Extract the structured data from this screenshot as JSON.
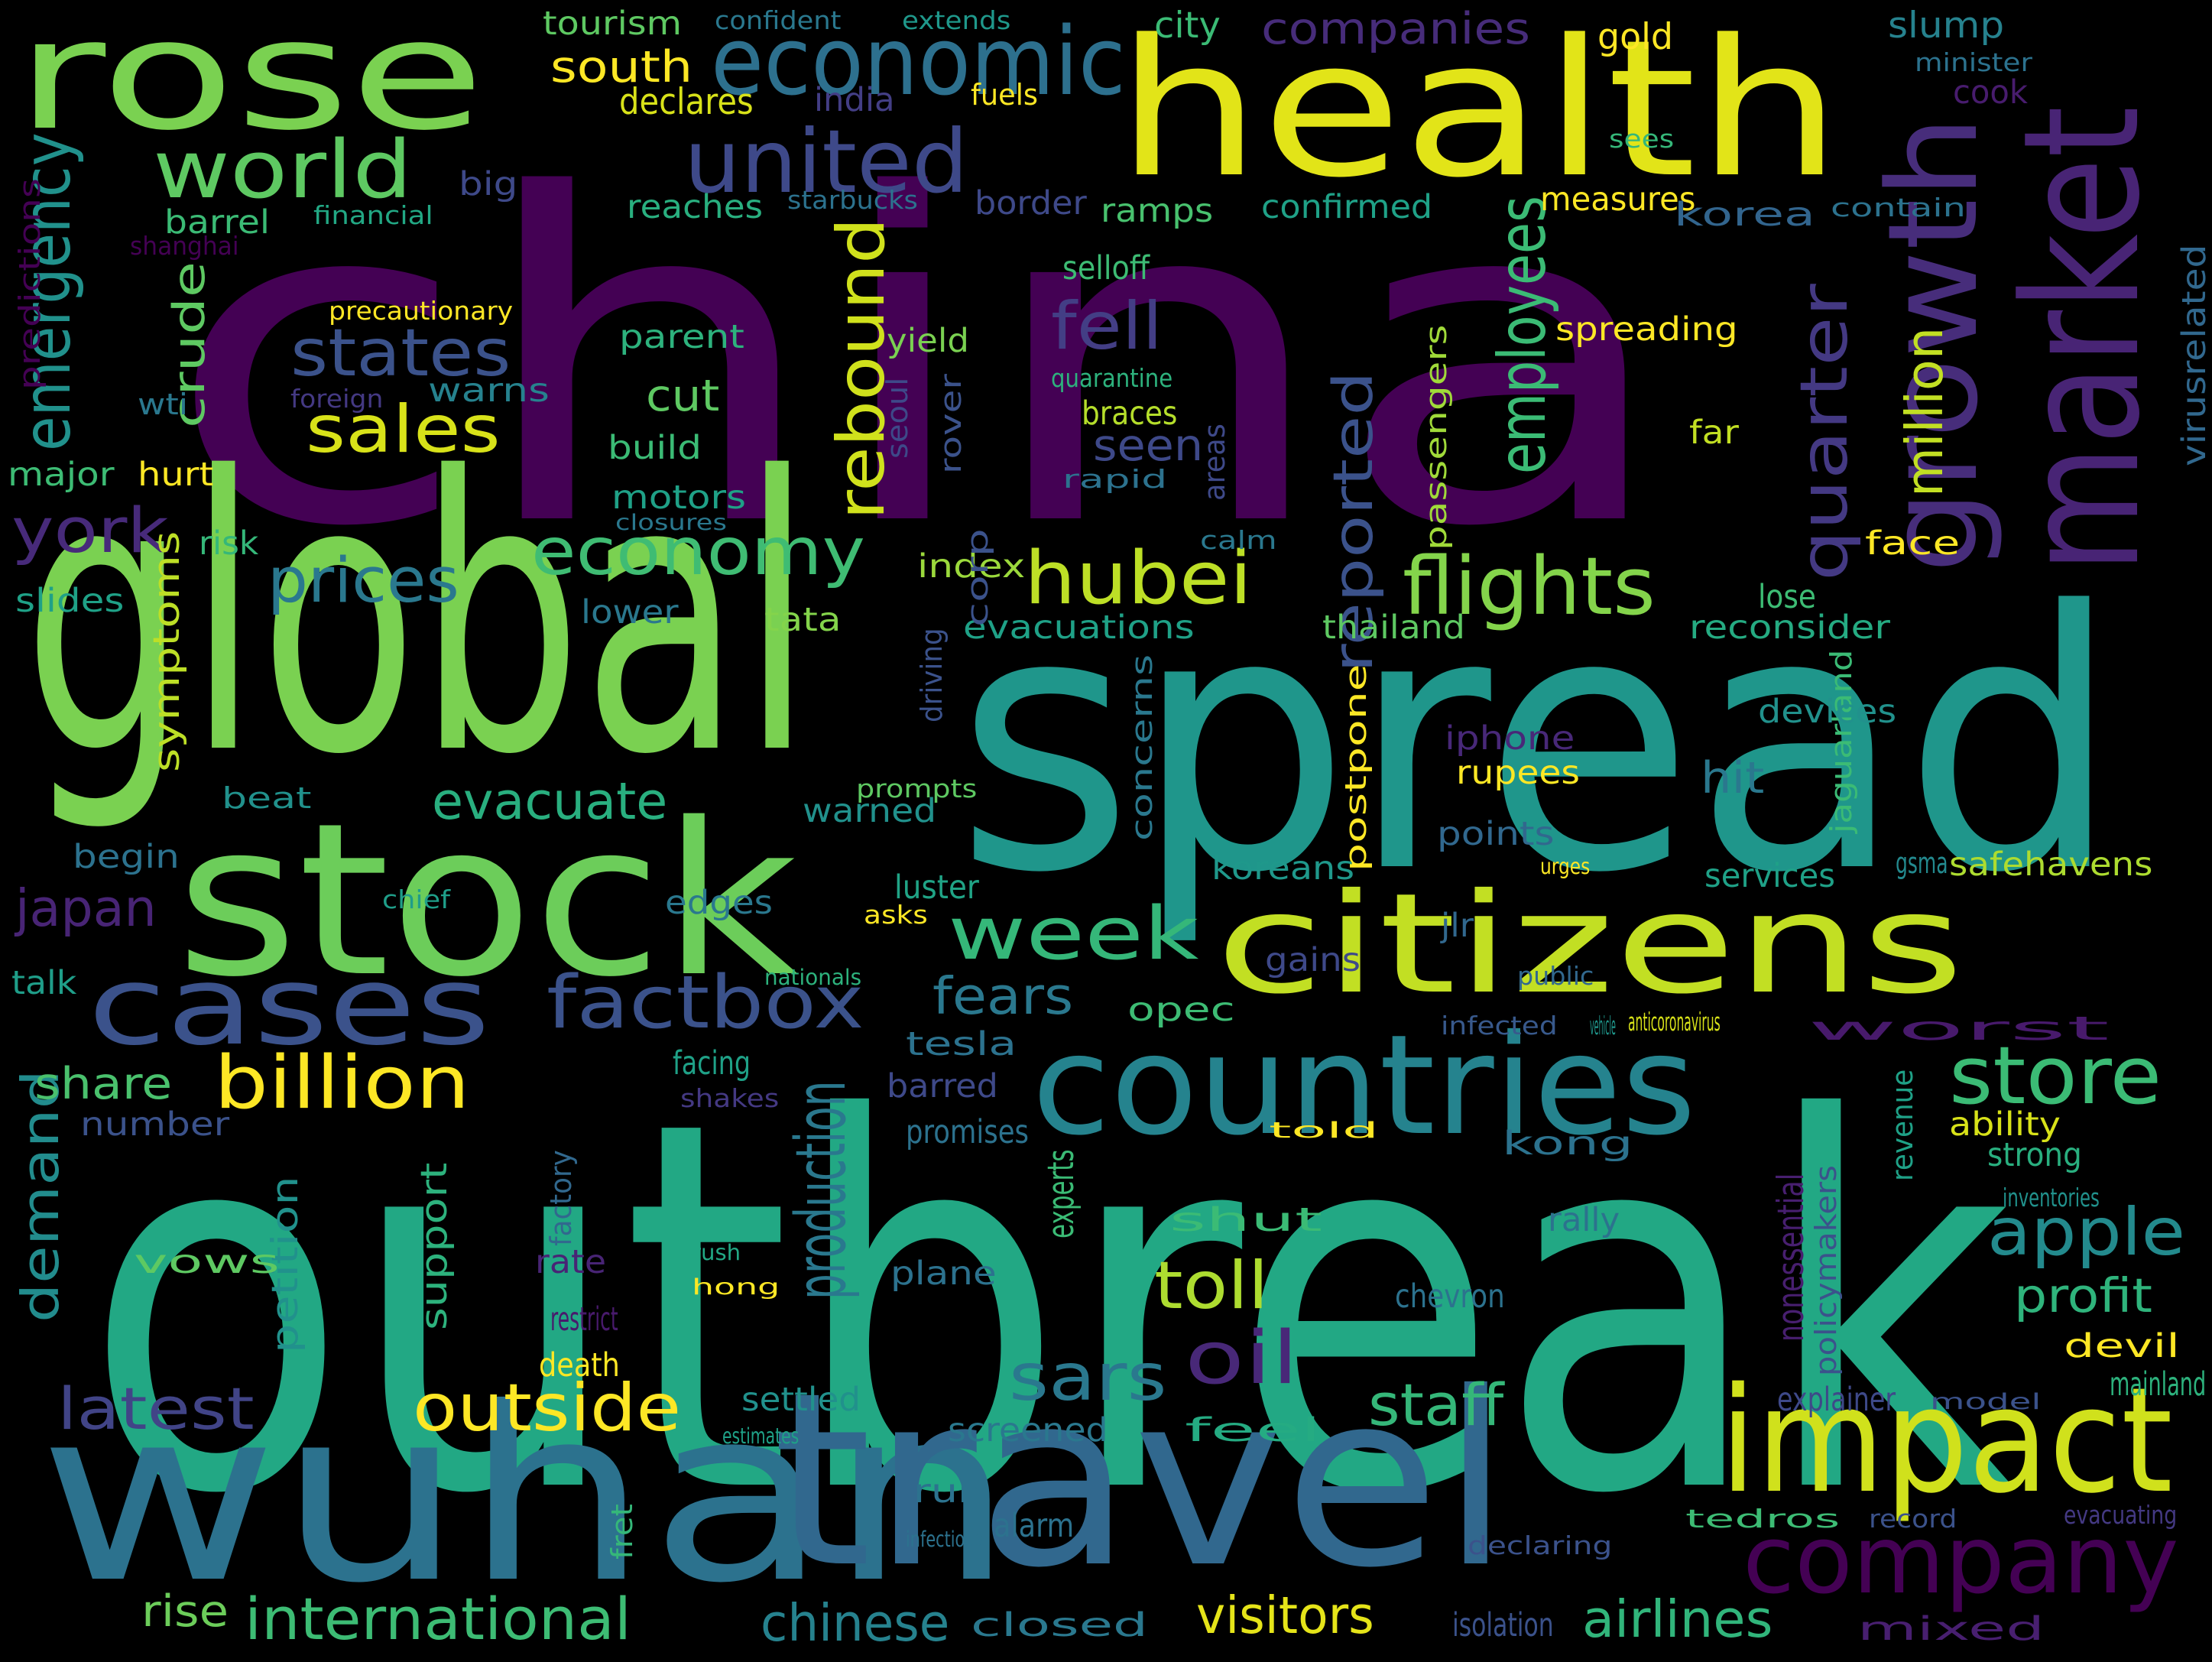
{
  "background": "#000000",
  "palette": [
    "#440154",
    "#3b528b",
    "#21918c",
    "#5ec962",
    "#fde725"
  ],
  "words": [
    {
      "text": "china",
      "color": "#440154"
    },
    {
      "text": "outbreak",
      "color": "#22a884"
    },
    {
      "text": "spread",
      "color": "#1f968b"
    },
    {
      "text": "health",
      "color": "#e2e418"
    },
    {
      "text": "global",
      "color": "#7ad151"
    },
    {
      "text": "stock",
      "color": "#6ccd5a"
    },
    {
      "text": "rose",
      "color": "#7ad151"
    },
    {
      "text": "wuhan",
      "color": "#2c728e"
    },
    {
      "text": "travel",
      "color": "#31688e"
    },
    {
      "text": "citizens",
      "color": "#c2df23"
    },
    {
      "text": "impact",
      "color": "#d0e11c"
    },
    {
      "text": "countries",
      "color": "#25838e"
    },
    {
      "text": "market",
      "color": "#482475"
    },
    {
      "text": "growth",
      "color": "#472d7b"
    },
    {
      "text": "cases",
      "color": "#3b528b"
    },
    {
      "text": "company",
      "color": "#440154"
    },
    {
      "text": "economic",
      "color": "#2d708e"
    },
    {
      "text": "united",
      "color": "#3e4989"
    },
    {
      "text": "world",
      "color": "#5ec962"
    },
    {
      "text": "factbox",
      "color": "#3b528b"
    },
    {
      "text": "flights",
      "color": "#84d44b"
    },
    {
      "text": "hubei",
      "color": "#bddf26"
    },
    {
      "text": "billion",
      "color": "#fde725"
    },
    {
      "text": "outside",
      "color": "#fde725"
    },
    {
      "text": "store",
      "color": "#3bbb75"
    },
    {
      "text": "week",
      "color": "#35b779"
    },
    {
      "text": "economy",
      "color": "#3fbc73"
    },
    {
      "text": "international",
      "color": "#3dbc74"
    },
    {
      "text": "oil",
      "color": "#482878"
    },
    {
      "text": "toll",
      "color": "#addc30"
    },
    {
      "text": "apple",
      "color": "#238a8d"
    },
    {
      "text": "staff",
      "color": "#35b779"
    },
    {
      "text": "latest",
      "color": "#414487"
    },
    {
      "text": "sars",
      "color": "#2a788e"
    },
    {
      "text": "fell",
      "color": "#433e85"
    },
    {
      "text": "states",
      "color": "#3b528b"
    },
    {
      "text": "sales",
      "color": "#d8e219"
    },
    {
      "text": "york",
      "color": "#472a7a"
    },
    {
      "text": "prices",
      "color": "#2a788e"
    },
    {
      "text": "emergency",
      "color": "#21918c"
    },
    {
      "text": "quarter",
      "color": "#443983"
    },
    {
      "text": "employees",
      "color": "#3bbb75"
    },
    {
      "text": "rebound",
      "color": "#d0e11c"
    },
    {
      "text": "reported",
      "color": "#3b528b"
    },
    {
      "text": "million",
      "color": "#c2df23"
    },
    {
      "text": "profit",
      "color": "#2fb47c"
    },
    {
      "text": "production",
      "color": "#2a788e"
    },
    {
      "text": "demand",
      "color": "#228c8d"
    },
    {
      "text": "airlines",
      "color": "#31b57b"
    },
    {
      "text": "visitors",
      "color": "#e5e419"
    },
    {
      "text": "chinese",
      "color": "#26828e"
    },
    {
      "text": "fears",
      "color": "#2a788e"
    },
    {
      "text": "evacuate",
      "color": "#29af7f"
    },
    {
      "text": "hit",
      "color": "#2a788e"
    },
    {
      "text": "cut",
      "color": "#5ec962"
    },
    {
      "text": "seen",
      "color": "#3e4989"
    },
    {
      "text": "rise",
      "color": "#6ccd5a"
    },
    {
      "text": "share",
      "color": "#4ac16d"
    },
    {
      "text": "japan",
      "color": "#482475"
    },
    {
      "text": "crude",
      "color": "#5ec962"
    },
    {
      "text": "south",
      "color": "#fde725"
    },
    {
      "text": "declares",
      "color": "#d8e219"
    },
    {
      "text": "companies",
      "color": "#472c7a"
    },
    {
      "text": "city",
      "color": "#3bbb75"
    },
    {
      "text": "gold",
      "color": "#fde725"
    },
    {
      "text": "slump",
      "color": "#26828e"
    },
    {
      "text": "cook",
      "color": "#481c6e"
    },
    {
      "text": "tourism",
      "color": "#5ec962"
    },
    {
      "text": "confident",
      "color": "#2a788e"
    },
    {
      "text": "extends",
      "color": "#1f988b"
    },
    {
      "text": "india",
      "color": "#433e85"
    },
    {
      "text": "fuels",
      "color": "#fde725"
    },
    {
      "text": "minister",
      "color": "#2c728e"
    },
    {
      "text": "big",
      "color": "#3e4989"
    },
    {
      "text": "barrel",
      "color": "#3bbb75"
    },
    {
      "text": "financial",
      "color": "#22a884"
    },
    {
      "text": "reaches",
      "color": "#29af7f"
    },
    {
      "text": "starbucks",
      "color": "#2c728e"
    },
    {
      "text": "border",
      "color": "#3e4989"
    },
    {
      "text": "ramps",
      "color": "#48c16e"
    },
    {
      "text": "confirmed",
      "color": "#1fa187"
    },
    {
      "text": "measures",
      "color": "#fde725"
    },
    {
      "text": "korea",
      "color": "#32658e"
    },
    {
      "text": "contain",
      "color": "#2c728e"
    },
    {
      "text": "sees",
      "color": "#35b779"
    },
    {
      "text": "predictions",
      "color": "#440154"
    },
    {
      "text": "shanghai",
      "color": "#440154"
    },
    {
      "text": "precautionary",
      "color": "#fde725"
    },
    {
      "text": "selloff",
      "color": "#3dbc74"
    },
    {
      "text": "parent",
      "color": "#2db27d"
    },
    {
      "text": "yield",
      "color": "#7ad151"
    },
    {
      "text": "spreading",
      "color": "#fde725"
    },
    {
      "text": "quarantine",
      "color": "#2db27d"
    },
    {
      "text": "passengers",
      "color": "#a0da39"
    },
    {
      "text": "virusrelated",
      "color": "#31688e"
    },
    {
      "text": "foreign",
      "color": "#443983"
    },
    {
      "text": "warns",
      "color": "#26828e"
    },
    {
      "text": "wti",
      "color": "#2a788e"
    },
    {
      "text": "braces",
      "color": "#b5de2b"
    },
    {
      "text": "build",
      "color": "#3bbb75"
    },
    {
      "text": "seoul",
      "color": "#3e4989"
    },
    {
      "text": "rover",
      "color": "#3b528b"
    },
    {
      "text": "far",
      "color": "#c2df23"
    },
    {
      "text": "major",
      "color": "#3dbc74"
    },
    {
      "text": "hurt",
      "color": "#fde725"
    },
    {
      "text": "motors",
      "color": "#1fa187"
    },
    {
      "text": "rapid",
      "color": "#2c728e"
    },
    {
      "text": "areas",
      "color": "#3e4989"
    },
    {
      "text": "closures",
      "color": "#2a788e"
    },
    {
      "text": "risk",
      "color": "#35b779"
    },
    {
      "text": "calm",
      "color": "#2a788e"
    },
    {
      "text": "face",
      "color": "#fde725"
    },
    {
      "text": "index",
      "color": "#9bd93c"
    },
    {
      "text": "symptoms",
      "color": "#bddf26"
    },
    {
      "text": "lower",
      "color": "#2a788e"
    },
    {
      "text": "tata",
      "color": "#84d44b"
    },
    {
      "text": "evacuations",
      "color": "#1fa187"
    },
    {
      "text": "driving",
      "color": "#3b528b"
    },
    {
      "text": "thailand",
      "color": "#5ec962"
    },
    {
      "text": "reconsider",
      "color": "#25ab82"
    },
    {
      "text": "lose",
      "color": "#3dbc74"
    },
    {
      "text": "corp",
      "color": "#3b528b"
    },
    {
      "text": "slides",
      "color": "#1fa187"
    },
    {
      "text": "jaguarland",
      "color": "#3bbb75"
    },
    {
      "text": "devices",
      "color": "#21918c"
    },
    {
      "text": "concerns",
      "color": "#2a788e"
    },
    {
      "text": "iphone",
      "color": "#482878"
    },
    {
      "text": "postpone",
      "color": "#fde725"
    },
    {
      "text": "rupees",
      "color": "#fde725"
    },
    {
      "text": "beat",
      "color": "#21918c"
    },
    {
      "text": "prompts",
      "color": "#5ec962"
    },
    {
      "text": "warned",
      "color": "#21918c"
    },
    {
      "text": "points",
      "color": "#31688e"
    },
    {
      "text": "begin",
      "color": "#2c728e"
    },
    {
      "text": "gsma",
      "color": "#23898e"
    },
    {
      "text": "safehavens",
      "color": "#addc30"
    },
    {
      "text": "chief",
      "color": "#1f9e89"
    },
    {
      "text": "edges",
      "color": "#2a788e"
    },
    {
      "text": "luster",
      "color": "#20a486"
    },
    {
      "text": "koreans",
      "color": "#1f988b"
    },
    {
      "text": "urges",
      "color": "#fde725"
    },
    {
      "text": "services",
      "color": "#1fa187"
    },
    {
      "text": "asks",
      "color": "#fde725"
    },
    {
      "text": "jlr",
      "color": "#31688e"
    },
    {
      "text": "talk",
      "color": "#1f9e89"
    },
    {
      "text": "nationals",
      "color": "#2db27d"
    },
    {
      "text": "gains",
      "color": "#3e4989"
    },
    {
      "text": "public",
      "color": "#31688e"
    },
    {
      "text": "opec",
      "color": "#3dbc74"
    },
    {
      "text": "infected",
      "color": "#38598c"
    },
    {
      "text": "vehicle",
      "color": "#1f968b"
    },
    {
      "text": "anticoronavirus",
      "color": "#d8e219"
    },
    {
      "text": "worst",
      "color": "#481a6c"
    },
    {
      "text": "facing",
      "color": "#1fa187"
    },
    {
      "text": "tesla",
      "color": "#2c728e"
    },
    {
      "text": "shakes",
      "color": "#443983"
    },
    {
      "text": "barred",
      "color": "#3e4989"
    },
    {
      "text": "number",
      "color": "#3b528b"
    },
    {
      "text": "promises",
      "color": "#2c728e"
    },
    {
      "text": "revenue",
      "color": "#1fa187"
    },
    {
      "text": "ability",
      "color": "#d8e219"
    },
    {
      "text": "told",
      "color": "#fde725"
    },
    {
      "text": "kong",
      "color": "#2c728e"
    },
    {
      "text": "strong",
      "color": "#29af7f"
    },
    {
      "text": "experts",
      "color": "#3bbb75"
    },
    {
      "text": "factory",
      "color": "#31688e"
    },
    {
      "text": "inventories",
      "color": "#21918c"
    },
    {
      "text": "nonessential",
      "color": "#481f70"
    },
    {
      "text": "policymakers",
      "color": "#3b528b"
    },
    {
      "text": "petition",
      "color": "#21918c"
    },
    {
      "text": "support",
      "color": "#2db27d"
    },
    {
      "text": "shut",
      "color": "#3bbb75"
    },
    {
      "text": "rally",
      "color": "#2c728e"
    },
    {
      "text": "vows",
      "color": "#5ec962"
    },
    {
      "text": "rate",
      "color": "#482475"
    },
    {
      "text": "rush",
      "color": "#22a884"
    },
    {
      "text": "plane",
      "color": "#2c728e"
    },
    {
      "text": "hong",
      "color": "#fde725"
    },
    {
      "text": "restrict",
      "color": "#481a6c"
    },
    {
      "text": "chevron",
      "color": "#2c728e"
    },
    {
      "text": "devil",
      "color": "#fde725"
    },
    {
      "text": "death",
      "color": "#fde725"
    },
    {
      "text": "mainland",
      "color": "#2db27d"
    },
    {
      "text": "settled",
      "color": "#21918c"
    },
    {
      "text": "explainer",
      "color": "#3e4989"
    },
    {
      "text": "model",
      "color": "#3b528b"
    },
    {
      "text": "estimates",
      "color": "#1fa187"
    },
    {
      "text": "screened",
      "color": "#2a788e"
    },
    {
      "text": "feel",
      "color": "#25ab82"
    },
    {
      "text": "run",
      "color": "#2c728e"
    },
    {
      "text": "fret",
      "color": "#35b779"
    },
    {
      "text": "alarm",
      "color": "#2c728e"
    },
    {
      "text": "infectious",
      "color": "#2c728e"
    },
    {
      "text": "tedros",
      "color": "#3dbc74"
    },
    {
      "text": "record",
      "color": "#3b528b"
    },
    {
      "text": "evacuating",
      "color": "#443983"
    },
    {
      "text": "declaring",
      "color": "#3b528b"
    },
    {
      "text": "closed",
      "color": "#2a788e"
    },
    {
      "text": "isolation",
      "color": "#3b528b"
    },
    {
      "text": "mixed",
      "color": "#481f70"
    }
  ]
}
